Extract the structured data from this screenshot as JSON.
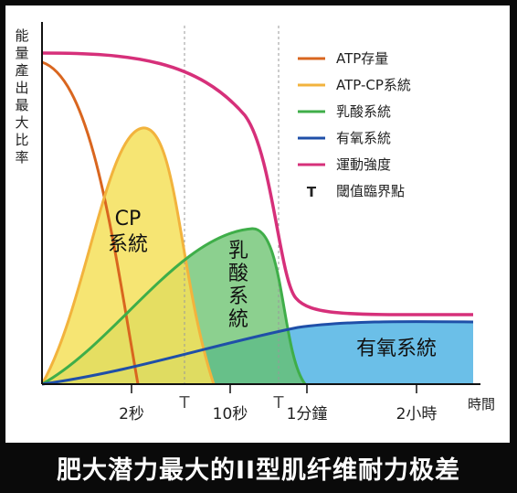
{
  "chart_data": {
    "type": "area",
    "ylabel": "能量產出最大比率",
    "xlabel": "時間",
    "x_ticks": [
      "2秒",
      "10秒",
      "1分鐘",
      "2小時"
    ],
    "threshold_marker": "T",
    "series": [
      {
        "name": "ATP存量",
        "color": "#d9661f"
      },
      {
        "name": "ATP-CP系統",
        "color": "#f2b33d"
      },
      {
        "name": "乳酸系統",
        "color": "#3fae49"
      },
      {
        "name": "有氧系統",
        "color": "#1f4fa8"
      },
      {
        "name": "運動強度",
        "color": "#d6307a"
      }
    ],
    "legend_threshold": "閾值臨界點",
    "area_labels": {
      "cp": [
        "CP",
        "系統"
      ],
      "lactic": [
        "乳",
        "酸",
        "系",
        "統"
      ],
      "aerobic": "有氧系統"
    },
    "legend_position": "top-right",
    "grid": false
  },
  "caption": "肥大潜力最大的II型肌纤维耐力极差"
}
